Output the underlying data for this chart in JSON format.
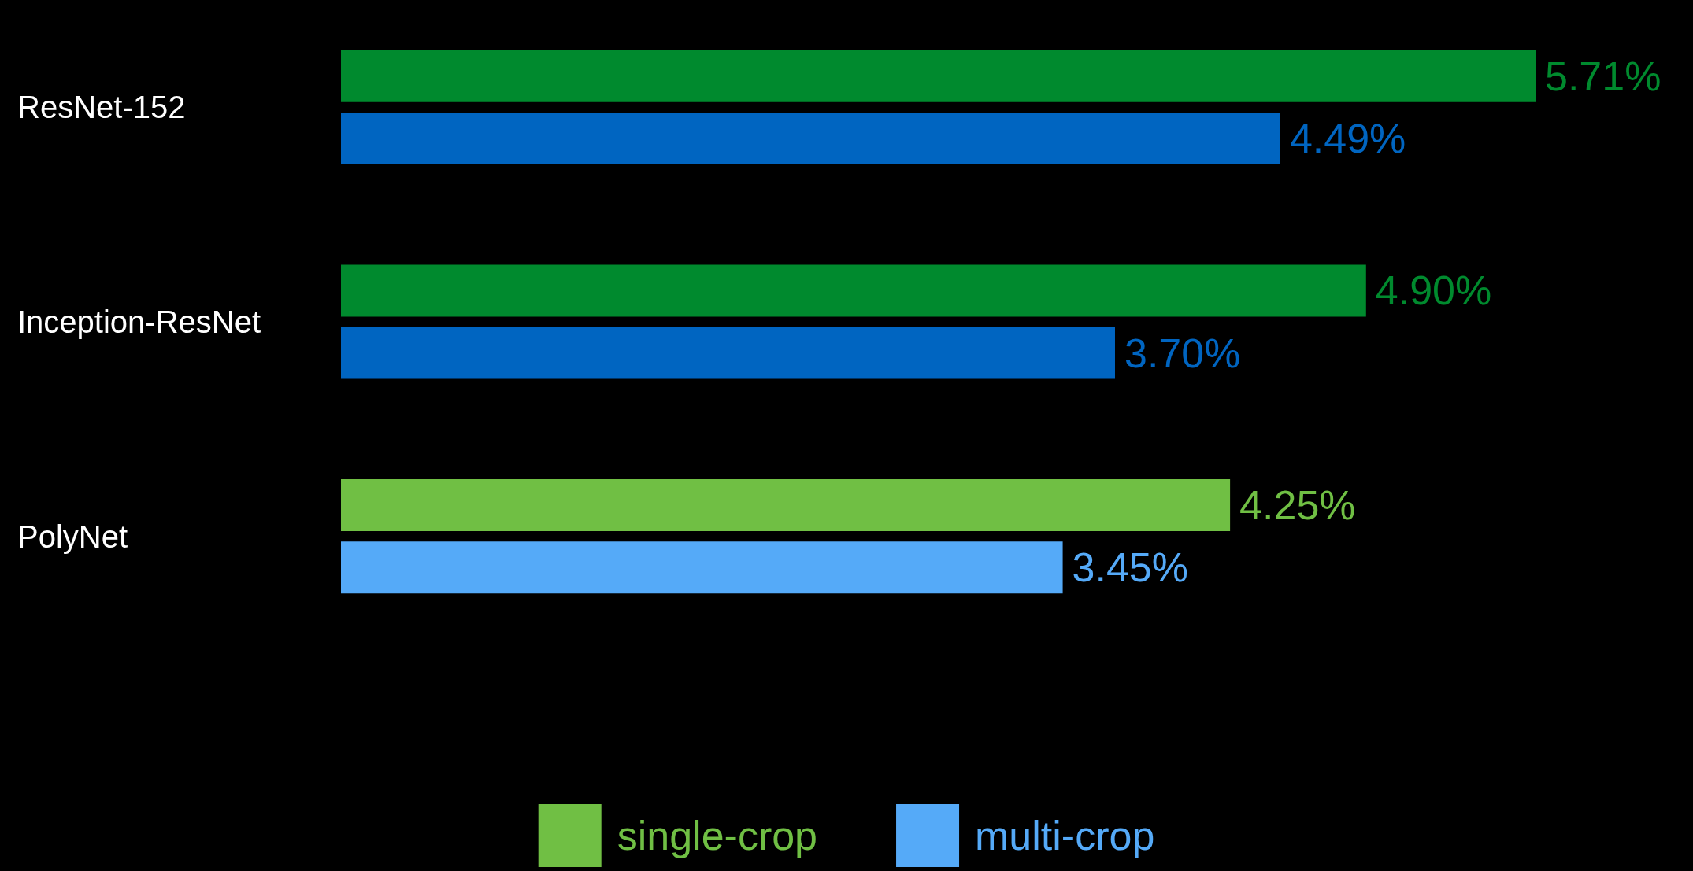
{
  "chart_data": {
    "type": "bar",
    "orientation": "horizontal",
    "categories": [
      "ResNet-152",
      "Inception-ResNet",
      "PolyNet"
    ],
    "series": [
      {
        "name": "single-crop",
        "color": "#70bf44",
        "colors": [
          "#008a2e",
          "#008a2e",
          "#70bf44"
        ],
        "values": [
          5.71,
          4.9,
          4.25
        ],
        "value_labels": [
          "5.71%",
          "4.90%",
          "4.25%"
        ]
      },
      {
        "name": "multi-crop",
        "color": "#55aaf8",
        "colors": [
          "#0065c1",
          "#0065c1",
          "#55aaf8"
        ],
        "values": [
          4.49,
          3.7,
          3.45
        ],
        "value_labels": [
          "4.49%",
          "3.70%",
          "3.45%"
        ]
      }
    ],
    "legend": "bottom"
  }
}
